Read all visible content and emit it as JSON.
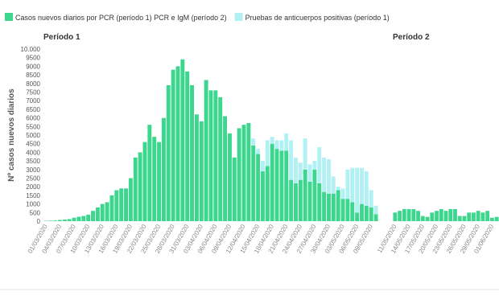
{
  "chart_data": [
    {
      "type": "bar",
      "stacked": true,
      "title": "Período 1",
      "ylabel": "Nº casos nuevos diarios",
      "categories": [
        "01/03/2020",
        null,
        null,
        "04/03/2020",
        null,
        null,
        "07/03/2020",
        null,
        null,
        "10/03/2020",
        null,
        null,
        "13/03/2020",
        null,
        null,
        "16/03/2020",
        null,
        null,
        "19/03/2020",
        null,
        null,
        "22/03/2020",
        null,
        null,
        "25/03/2020",
        null,
        null,
        "28/03/2020",
        null,
        null,
        "31/03/2020",
        null,
        null,
        "03/04/2020",
        null,
        null,
        "06/04/2020",
        null,
        null,
        "09/04/2020",
        null,
        null,
        "12/04/2020",
        null,
        null,
        "15/04/2020",
        null,
        null,
        "18/04/2020",
        null,
        null,
        "21/04/2020",
        null,
        null,
        "24/04/2020",
        null,
        null,
        "27/04/2020",
        null,
        null,
        "30/04/2020",
        null,
        null,
        "03/05/2020",
        null,
        null,
        "06/05/2020",
        null,
        null,
        "09/05/2020",
        null
      ],
      "series": [
        {
          "name": "Casos nuevos diarios por PCR (período 1) PCR e IgM (período 2)",
          "color": "#3dd68f",
          "values": [
            20,
            30,
            40,
            70,
            90,
            120,
            200,
            260,
            300,
            380,
            600,
            800,
            1000,
            1100,
            1500,
            1800,
            1900,
            1900,
            2500,
            3700,
            4000,
            4600,
            5600,
            4900,
            4600,
            6000,
            7900,
            8800,
            9000,
            9400,
            8700,
            7900,
            6200,
            5800,
            8200,
            7600,
            7600,
            7200,
            6100,
            5100,
            3700,
            5400,
            5600,
            5700,
            4400,
            3900,
            2900,
            3200,
            4500,
            4200,
            4100,
            4100,
            2400,
            2200,
            2400,
            3000,
            2300,
            3000,
            2200,
            1700,
            1600,
            1600,
            1800,
            1300,
            1300,
            1100,
            500,
            1000,
            900,
            800,
            400
          ]
        },
        {
          "name": "Pruebas de anticuerpos positivas (período 1)",
          "color": "#b2f1f3",
          "values": [
            0,
            0,
            0,
            0,
            0,
            0,
            0,
            0,
            0,
            0,
            0,
            0,
            0,
            0,
            0,
            0,
            0,
            0,
            0,
            0,
            0,
            0,
            0,
            0,
            0,
            0,
            0,
            0,
            0,
            0,
            0,
            0,
            0,
            0,
            0,
            0,
            0,
            0,
            0,
            0,
            0,
            0,
            0,
            0,
            400,
            300,
            600,
            1500,
            400,
            500,
            600,
            1000,
            2300,
            1500,
            1000,
            1800,
            1000,
            500,
            2100,
            2000,
            2000,
            1000,
            200,
            600,
            1700,
            2000,
            2600,
            2100,
            2000,
            1000,
            500
          ]
        }
      ],
      "ylim": [
        0,
        10000
      ],
      "yticks": [
        0,
        500,
        1000,
        1500,
        2000,
        2500,
        3000,
        3500,
        4000,
        4500,
        5000,
        5500,
        6000,
        6500,
        7000,
        7500,
        8000,
        8500,
        9000,
        9500,
        {
          "value": 10000,
          "label": "10.000"
        }
      ]
    },
    {
      "type": "bar",
      "title": "Período 2",
      "categories": [
        "11/05/2020",
        null,
        null,
        "14/05/2020",
        null,
        null,
        "17/05/2020",
        null,
        null,
        "20/05/2020",
        null,
        null,
        "23/05/2020",
        null,
        null,
        "26/05/2020",
        null,
        null,
        "29/05/2020",
        null,
        null,
        "01/06/2020",
        null
      ],
      "color": "#3dd68f",
      "values": [
        500,
        600,
        700,
        700,
        700,
        600,
        300,
        250,
        500,
        600,
        700,
        600,
        700,
        700,
        300,
        300,
        500,
        500,
        600,
        500,
        600,
        200,
        250
      ],
      "ylim": [
        0,
        10000
      ]
    }
  ]
}
